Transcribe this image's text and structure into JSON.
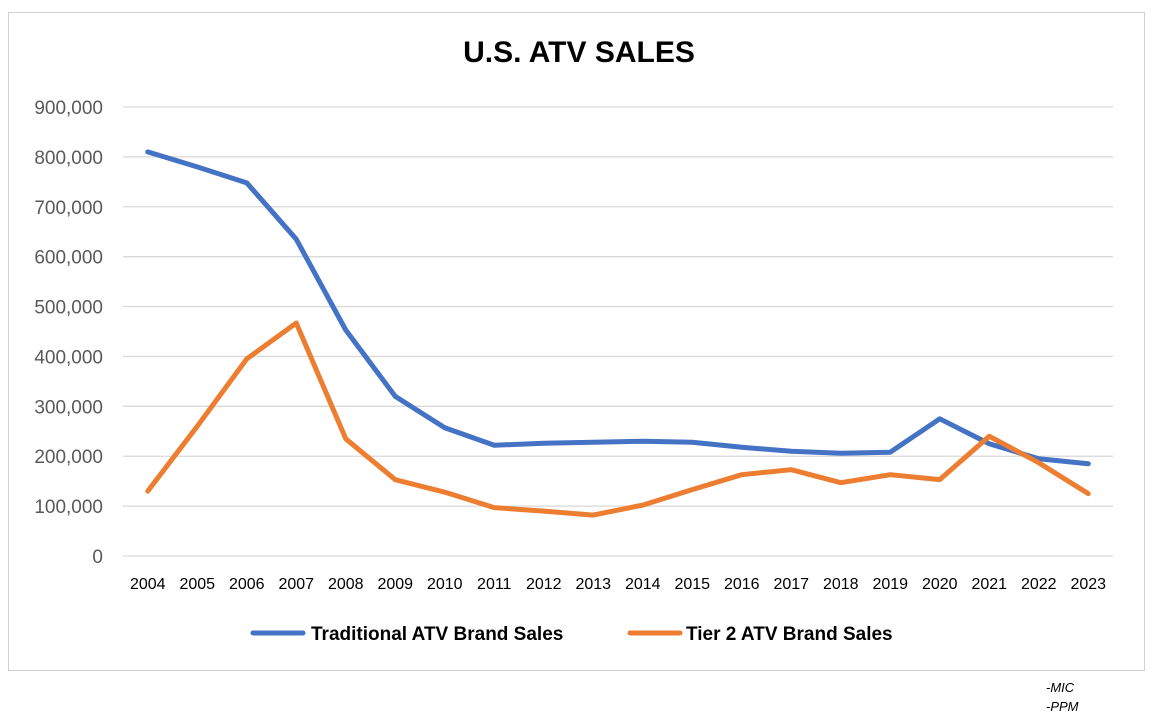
{
  "chart_data": {
    "type": "line",
    "title": "U.S. ATV SALES",
    "xlabel": "",
    "ylabel": "",
    "ylim": [
      0,
      900000
    ],
    "yticks": [
      0,
      100000,
      200000,
      300000,
      400000,
      500000,
      600000,
      700000,
      800000,
      900000
    ],
    "ytick_labels": [
      "0",
      "100,000",
      "200,000",
      "300,000",
      "400,000",
      "500,000",
      "600,000",
      "700,000",
      "800,000",
      "900,000"
    ],
    "grid": true,
    "legend_position": "bottom",
    "categories": [
      "2004",
      "2005",
      "2006",
      "2007",
      "2008",
      "2009",
      "2010",
      "2011",
      "2012",
      "2013",
      "2014",
      "2015",
      "2016",
      "2017",
      "2018",
      "2019",
      "2020",
      "2021",
      "2022",
      "2023"
    ],
    "series": [
      {
        "name": "Traditional ATV Brand Sales",
        "color": "#4472C4",
        "values": [
          810000,
          780000,
          748000,
          635000,
          453000,
          320000,
          257000,
          222000,
          226000,
          228000,
          230000,
          228000,
          218000,
          210000,
          206000,
          208000,
          275000,
          225000,
          195000,
          185000
        ]
      },
      {
        "name": "Tier 2 ATV Brand Sales",
        "color": "#ED7D31",
        "values": [
          130000,
          260000,
          395000,
          467000,
          235000,
          153000,
          128000,
          97000,
          90000,
          82000,
          102000,
          133000,
          163000,
          173000,
          147000,
          163000,
          153000,
          240000,
          187000,
          125000
        ]
      }
    ]
  },
  "footer": {
    "line1": "-MIC",
    "line2": "-PPM"
  }
}
